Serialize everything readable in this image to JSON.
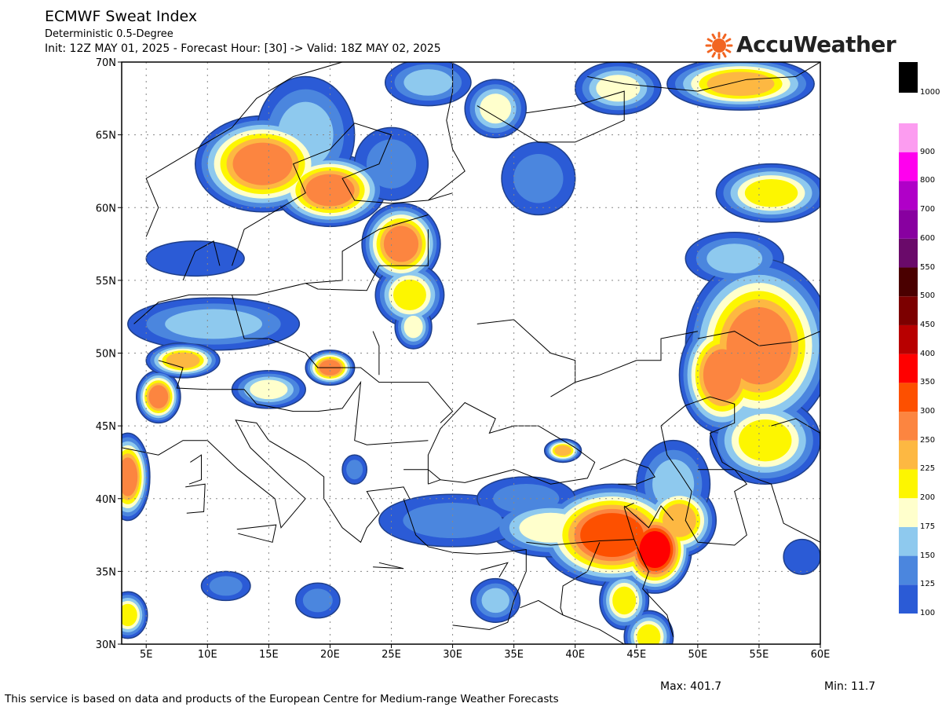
{
  "header": {
    "title": "ECMWF Sweat Index",
    "subtitle": "Deterministic 0.5-Degree",
    "init_line": "Init: 12Z MAY 01, 2025 - Forecast Hour: [30] -> Valid: 18Z MAY 02, 2025"
  },
  "brand": {
    "name": "AccuWeather",
    "logo_color": "#f26522"
  },
  "map": {
    "lon_range": [
      3,
      60
    ],
    "lat_range": [
      30,
      70
    ],
    "lon_labels": [
      "5E",
      "10E",
      "15E",
      "20E",
      "25E",
      "30E",
      "35E",
      "40E",
      "45E",
      "50E",
      "55E",
      "60E"
    ],
    "lat_labels": [
      "30N",
      "35N",
      "40N",
      "45N",
      "50N",
      "55N",
      "60N",
      "65N",
      "70N"
    ],
    "grid": "dotted"
  },
  "colorbar": [
    {
      "value": "100",
      "color": "#2b5bd6"
    },
    {
      "value": "125",
      "color": "#4b86de"
    },
    {
      "value": "150",
      "color": "#8ec9ee"
    },
    {
      "value": "175",
      "color": "#ffffcc"
    },
    {
      "value": "200",
      "color": "#fdf600"
    },
    {
      "value": "225",
      "color": "#fdb842"
    },
    {
      "value": "250",
      "color": "#fc8540"
    },
    {
      "value": "300",
      "color": "#fd5000"
    },
    {
      "value": "350",
      "color": "#ff0000"
    },
    {
      "value": "400",
      "color": "#b80000"
    },
    {
      "value": "450",
      "color": "#7c0000"
    },
    {
      "value": "500",
      "color": "#4a0000"
    },
    {
      "value": "550",
      "color": "#6a0a6a"
    },
    {
      "value": "600",
      "color": "#8800a0"
    },
    {
      "value": "700",
      "color": "#b000c8"
    },
    {
      "value": "800",
      "color": "#ff00ee"
    },
    {
      "value": "900",
      "color": "#fc9cf0"
    },
    {
      "value": "1000",
      "color": "#000000"
    }
  ],
  "stats": {
    "max": "Max: 401.7",
    "min": "Min: 11.7"
  },
  "footer": "This service is based on data and products of the European Centre for Medium-range Weather Forecasts"
}
